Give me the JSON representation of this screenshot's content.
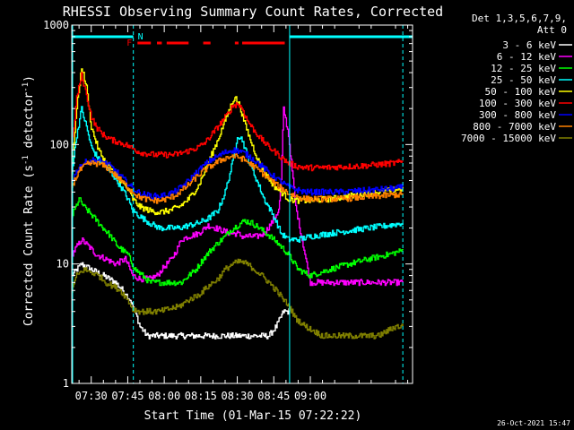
{
  "chart_data": {
    "type": "line",
    "title": "RHESSI Observing Summary Count Rates, Corrected",
    "xlabel": "Start Time (01-Mar-15 07:22:22)",
    "ylabel": "Corrected Count Rate (s",
    "ylabel_unit": "detector",
    "ylabel_sup": "-1",
    "ylabel_close": ")",
    "yscale": "log",
    "ylim": [
      1,
      1000
    ],
    "xlim_min": [
      442,
      582
    ],
    "x_tick_minutes": [
      450,
      465,
      480,
      495,
      510,
      525,
      540
    ],
    "x_tick_labels": [
      "07:30",
      "07:45",
      "08:00",
      "08:15",
      "08:30",
      "08:45",
      "09:00"
    ],
    "y_tick_values": [
      1,
      10,
      100,
      1000
    ],
    "y_tick_labels": [
      "1",
      "10",
      "100",
      "1000"
    ],
    "timestamp": "26-Oct-2021 15:47",
    "legend": {
      "header": [
        "Det 1,3,5,6,7,9,",
        "Att 0"
      ],
      "placement": "top-right"
    },
    "flags": {
      "night_label": "N",
      "flare_label": "F",
      "night_color": "#00ffff",
      "flare_color": "#ff0000",
      "night_intervals_min": [
        [
          442,
          467.3
        ],
        [
          531.5,
          582
        ]
      ],
      "flare_intervals_min": [
        [
          469,
          474.5
        ],
        [
          477,
          479
        ],
        [
          481,
          490
        ],
        [
          496,
          499
        ],
        [
          509,
          510.5
        ],
        [
          512,
          529.5
        ]
      ],
      "vline_dashed_min": [
        467.3,
        578
      ],
      "vline_solid_min": [
        531.5
      ]
    },
    "series": [
      {
        "name": "3 - 6 keV",
        "color": "#ffffff",
        "x": [
          442,
          446,
          450,
          455,
          460,
          463,
          466,
          468,
          470,
          473,
          475,
          478,
          480,
          482,
          484,
          486,
          489,
          492,
          496,
          499,
          502,
          504,
          506,
          508,
          509,
          510,
          512,
          514,
          516,
          518,
          520,
          523,
          526,
          529,
          531.5
        ],
        "y": [
          8,
          10,
          9,
          8,
          7,
          6,
          5,
          4,
          3,
          2.5,
          2.5,
          2.5,
          2.5,
          2.5,
          2.5,
          2.5,
          2.5,
          2.5,
          2.5,
          2.5,
          2.5,
          2.5,
          2.5,
          2.5,
          2.5,
          2.5,
          2.5,
          2.5,
          2.5,
          2.5,
          2.5,
          2.5,
          3,
          4,
          4
        ]
      },
      {
        "name": "6 - 12 keV",
        "color": "#ff00ff",
        "x": [
          442,
          446,
          449,
          452,
          456,
          460,
          464,
          467,
          470,
          474,
          477,
          479,
          481,
          483,
          485,
          487,
          490,
          494,
          498,
          501,
          504,
          507,
          510,
          512,
          515,
          518,
          521,
          524,
          526,
          527,
          528,
          529,
          531,
          534,
          540,
          550,
          560,
          570,
          578
        ],
        "y": [
          12,
          16,
          14,
          12,
          11,
          10,
          11,
          8,
          7.5,
          7.5,
          8,
          9,
          10,
          11,
          13,
          16,
          17,
          18,
          21,
          20,
          19,
          18,
          18,
          17,
          17,
          17,
          18,
          22,
          26,
          28,
          50,
          200,
          120,
          30,
          7,
          7,
          7,
          7,
          7
        ]
      },
      {
        "name": "12 - 25 keV",
        "color": "#00ff00",
        "x": [
          442,
          445,
          447,
          450,
          453,
          457,
          461,
          465,
          468,
          471,
          474,
          477,
          480,
          484,
          487,
          490,
          493,
          496,
          499,
          502,
          505,
          507,
          510,
          513,
          516,
          519,
          522,
          525,
          528,
          531,
          535,
          540,
          548,
          556,
          564,
          572,
          578
        ],
        "y": [
          25,
          35,
          30,
          26,
          22,
          18,
          14,
          12,
          9,
          8,
          7,
          7,
          7,
          7,
          7,
          8,
          9,
          11,
          13,
          15,
          17,
          19,
          21,
          23,
          22,
          20,
          18,
          16,
          14,
          12,
          9,
          8,
          9,
          10,
          11,
          12,
          13
        ]
      },
      {
        "name": "25 - 50 keV",
        "color": "#00ffff",
        "x": [
          442,
          444,
          446,
          448,
          450,
          453,
          456,
          459,
          462,
          465,
          467,
          470,
          474,
          478,
          482,
          486,
          490,
          494,
          498,
          502,
          505,
          508,
          510,
          512,
          515,
          518,
          521,
          525,
          528,
          531,
          535,
          540,
          548,
          556,
          564,
          572,
          578
        ],
        "y": [
          60,
          120,
          200,
          140,
          95,
          75,
          65,
          55,
          45,
          35,
          28,
          25,
          22,
          20,
          20,
          20,
          21,
          22,
          24,
          28,
          40,
          70,
          120,
          110,
          70,
          50,
          35,
          25,
          18,
          16,
          16,
          17,
          18,
          19,
          20,
          21,
          22
        ]
      },
      {
        "name": "50 - 100 keV",
        "color": "#ffff00",
        "x": [
          442,
          444,
          446,
          448,
          450,
          453,
          456,
          459,
          462,
          465,
          467,
          470,
          474,
          478,
          482,
          486,
          490,
          494,
          498,
          502,
          505,
          508,
          509,
          511,
          513,
          516,
          519,
          522,
          525,
          528,
          531,
          535,
          540,
          548,
          556,
          564,
          572,
          578
        ],
        "y": [
          70,
          200,
          450,
          300,
          140,
          90,
          70,
          60,
          50,
          42,
          35,
          30,
          28,
          27,
          28,
          30,
          35,
          45,
          70,
          110,
          160,
          230,
          250,
          210,
          150,
          100,
          70,
          55,
          45,
          40,
          35,
          34,
          34,
          35,
          37,
          39,
          41,
          43
        ]
      },
      {
        "name": "100 - 300 keV",
        "color": "#ff0000",
        "x": [
          442,
          444,
          446,
          448,
          450,
          452,
          455,
          458,
          461,
          464,
          466,
          468,
          470,
          473,
          476,
          479,
          482,
          485,
          488,
          491,
          494,
          497,
          500,
          503,
          506,
          508,
          510,
          512,
          514,
          517,
          520,
          523,
          526,
          529,
          531,
          534,
          538,
          545,
          552,
          560,
          568,
          575,
          578
        ],
        "y": [
          90,
          250,
          380,
          260,
          170,
          140,
          120,
          110,
          105,
          100,
          95,
          90,
          86,
          84,
          82,
          82,
          82,
          83,
          86,
          90,
          95,
          105,
          125,
          150,
          180,
          210,
          220,
          200,
          160,
          130,
          110,
          95,
          85,
          75,
          70,
          66,
          64,
          64,
          65,
          66,
          68,
          70,
          72
        ]
      },
      {
        "name": "300 - 800 keV",
        "color": "#0000ff",
        "x": [
          442,
          445,
          448,
          451,
          454,
          457,
          460,
          463,
          466,
          469,
          472,
          475,
          478,
          481,
          484,
          487,
          490,
          493,
          496,
          499,
          502,
          505,
          508,
          511,
          514,
          517,
          520,
          523,
          526,
          529,
          531,
          534,
          538,
          545,
          552,
          560,
          568,
          575,
          578
        ],
        "y": [
          50,
          65,
          72,
          74,
          72,
          68,
          60,
          52,
          45,
          40,
          38,
          37,
          37,
          38,
          40,
          44,
          50,
          58,
          66,
          74,
          80,
          86,
          90,
          88,
          82,
          74,
          66,
          58,
          52,
          47,
          44,
          42,
          40,
          40,
          40,
          41,
          42,
          43,
          44
        ]
      },
      {
        "name": "800 - 7000 keV",
        "color": "#ff8000",
        "x": [
          442,
          445,
          448,
          451,
          454,
          457,
          460,
          463,
          466,
          469,
          472,
          475,
          478,
          481,
          484,
          487,
          490,
          493,
          496,
          499,
          502,
          505,
          508,
          511,
          514,
          517,
          520,
          523,
          526,
          529,
          531,
          534,
          538,
          545,
          552,
          560,
          568,
          575,
          578
        ],
        "y": [
          45,
          60,
          68,
          70,
          68,
          63,
          55,
          48,
          42,
          37,
          35,
          34,
          34,
          35,
          37,
          41,
          46,
          53,
          60,
          66,
          72,
          77,
          80,
          78,
          72,
          65,
          58,
          52,
          46,
          42,
          39,
          37,
          35,
          35,
          35,
          36,
          37,
          38,
          38
        ]
      },
      {
        "name": "7000 - 15000 keV",
        "color": "#808000",
        "x": [
          442,
          444,
          447,
          450,
          453,
          456,
          459,
          462,
          465,
          467,
          470,
          474,
          478,
          482,
          486,
          490,
          494,
          498,
          502,
          505,
          508,
          511,
          514,
          517,
          520,
          523,
          526,
          529,
          531,
          534,
          538,
          545,
          552,
          560,
          568,
          575,
          578
        ],
        "y": [
          6,
          8,
          9,
          8.5,
          8,
          7,
          6.5,
          6,
          5,
          4.2,
          4,
          4,
          4,
          4.2,
          4.4,
          5,
          5.5,
          6.5,
          7.5,
          9,
          10,
          10.5,
          10,
          9,
          8,
          7,
          6,
          5,
          4.5,
          3.5,
          3,
          2.5,
          2.5,
          2.5,
          2.5,
          3,
          3
        ]
      }
    ]
  }
}
